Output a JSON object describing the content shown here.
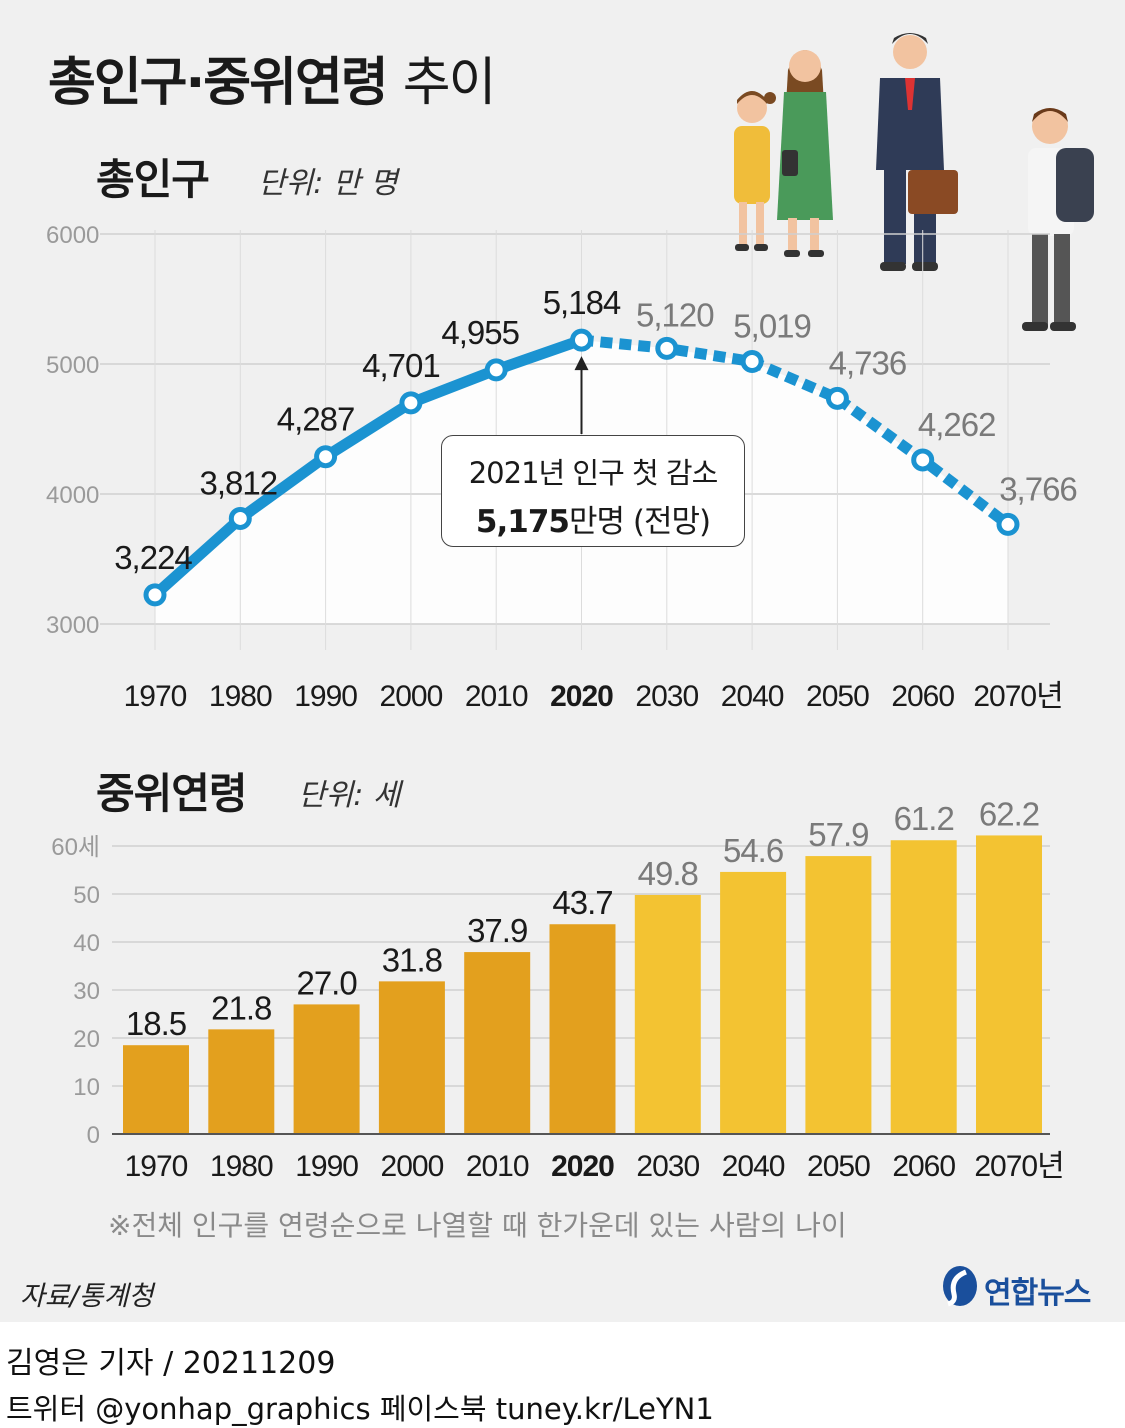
{
  "title": {
    "bold": "총인구·중위연령",
    "light": "추이"
  },
  "population": {
    "section_title": "총인구",
    "unit": "단위: 만 명",
    "annotation": {
      "line1": "2021년 인구 첫 감소",
      "value": "5,175",
      "suffix": "만명 (전망)"
    }
  },
  "median_age": {
    "section_title": "중위연령",
    "unit": "단위: 세"
  },
  "note": "※전체 인구를 연령순으로 나열할 때 한가운데 있는 사람의 나이",
  "source": "자료/통계청",
  "logo": "연합뉴스",
  "reporter": "김영은 기자 / 20211209",
  "social": "트위터 @yonhap_graphics  페이스북 tuney.kr/LeYN1",
  "colors": {
    "line_blue": "#1b93d1",
    "bar_dark": "#e3a01e",
    "bar_light": "#f3c332",
    "projected_label": "#7a7a7a",
    "logo_blue": "#1a4f9c"
  },
  "chart_data": [
    {
      "type": "line",
      "x_tick_labels": [
        "1970",
        "1980",
        "1990",
        "2000",
        "2010",
        "2020",
        "2030",
        "2040",
        "2050",
        "2060",
        "2070년"
      ],
      "x": [
        1970,
        1980,
        1990,
        2000,
        2010,
        2020,
        2030,
        2040,
        2050,
        2060,
        2070
      ],
      "values": [
        3224,
        3812,
        4287,
        4701,
        4955,
        5184,
        5120,
        5019,
        4736,
        4262,
        3766
      ],
      "value_labels": [
        "3,224",
        "3,812",
        "4,287",
        "4,701",
        "4,955",
        "5,184",
        "5,120",
        "5,019",
        "4,736",
        "4,262",
        "3,766"
      ],
      "y_ticks": [
        "3000",
        "4000",
        "5000",
        "6000"
      ],
      "ylim": [
        3000,
        6000
      ],
      "highlight_x": "2020",
      "projected_from": 2020,
      "grid": true
    },
    {
      "type": "bar",
      "categories": [
        "1970",
        "1980",
        "1990",
        "2000",
        "2010",
        "2020",
        "2030",
        "2040",
        "2050",
        "2060",
        "2070년"
      ],
      "values": [
        18.5,
        21.8,
        27.0,
        31.8,
        37.9,
        43.7,
        49.8,
        54.6,
        57.9,
        61.2,
        62.2
      ],
      "value_labels": [
        "18.5",
        "21.8",
        "27.0",
        "31.8",
        "37.9",
        "43.7",
        "49.8",
        "54.6",
        "57.9",
        "61.2",
        "62.2"
      ],
      "y_ticks": [
        "0",
        "10",
        "20",
        "30",
        "40",
        "50",
        "60세"
      ],
      "ylim": [
        0,
        60
      ],
      "highlight_x": "2020",
      "projected_from": 2020,
      "grid": true
    }
  ]
}
